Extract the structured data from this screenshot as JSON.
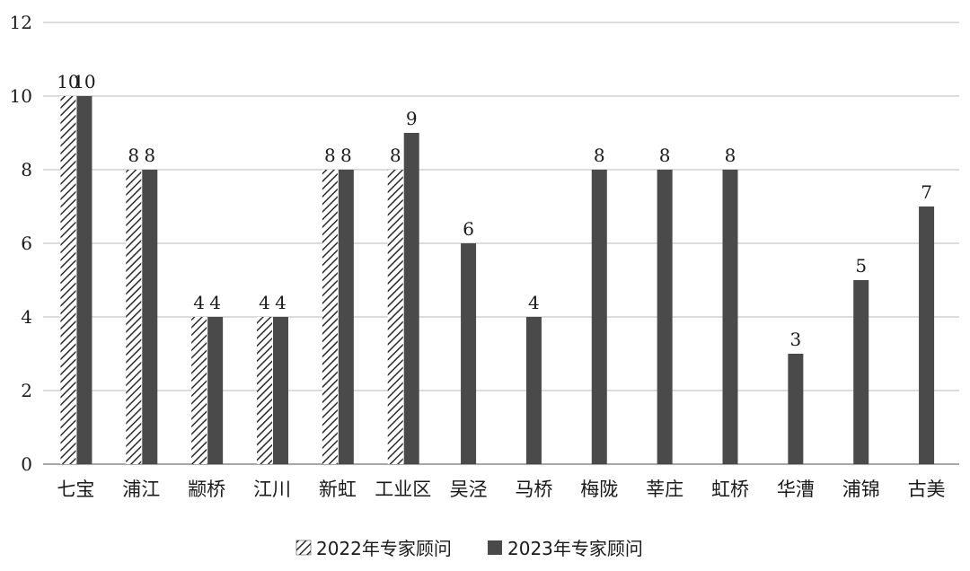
{
  "chart_data": {
    "type": "bar",
    "categories": [
      "七宝",
      "浦江",
      "颛桥",
      "江川",
      "新虹",
      "工业区",
      "吴泾",
      "马桥",
      "梅陇",
      "莘庄",
      "虹桥",
      "华漕",
      "浦锦",
      "古美"
    ],
    "series": [
      {
        "name": "2022年专家顾问",
        "values": [
          10,
          8,
          4,
          4,
          8,
          8,
          null,
          null,
          null,
          null,
          null,
          null,
          null,
          null
        ],
        "color": "#ffffff",
        "pattern": "diagonal-hatch"
      },
      {
        "name": "2023年专家顾问",
        "values": [
          10,
          8,
          4,
          4,
          8,
          9,
          6,
          4,
          8,
          8,
          8,
          3,
          5,
          7
        ],
        "color": "#4a4a4a"
      }
    ],
    "yticks": [
      "0",
      "2",
      "4",
      "6",
      "8",
      "10",
      "12"
    ],
    "ylim": [
      0,
      12
    ],
    "grid": true,
    "legend_position": "bottom-center",
    "title": "",
    "xlabel": "",
    "ylabel": ""
  }
}
